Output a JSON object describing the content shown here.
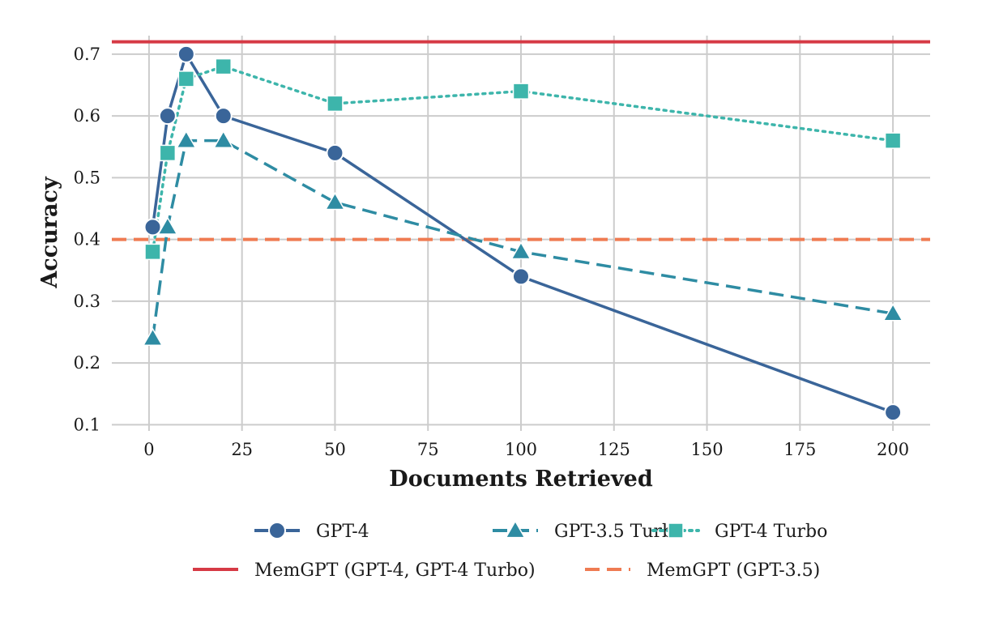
{
  "chart_data": {
    "type": "line",
    "xlabel": "Documents Retrieved",
    "ylabel": "Accuracy",
    "xlim": [
      -10,
      210
    ],
    "ylim": [
      0.09,
      0.73
    ],
    "xticks": [
      0,
      25,
      50,
      75,
      100,
      125,
      150,
      175,
      200
    ],
    "yticks": [
      0.1,
      0.2,
      0.3,
      0.4,
      0.5,
      0.6,
      0.7
    ],
    "grid": true,
    "legend_position": "bottom",
    "series": [
      {
        "name": "GPT-4",
        "color": "#3a6599",
        "line_style": "solid",
        "marker": "circle",
        "x": [
          1,
          5,
          10,
          20,
          50,
          100,
          200
        ],
        "y": [
          0.42,
          0.6,
          0.7,
          0.6,
          0.54,
          0.34,
          0.12
        ]
      },
      {
        "name": "GPT-3.5 Turbo",
        "color": "#2e8ca3",
        "line_style": "dashed",
        "marker": "triangle",
        "x": [
          1,
          5,
          10,
          20,
          50,
          100,
          200
        ],
        "y": [
          0.24,
          0.42,
          0.56,
          0.56,
          0.46,
          0.38,
          0.28
        ]
      },
      {
        "name": "GPT-4 Turbo",
        "color": "#3db5ab",
        "line_style": "dotted",
        "marker": "square",
        "x": [
          1,
          5,
          10,
          20,
          50,
          100,
          200
        ],
        "y": [
          0.38,
          0.54,
          0.66,
          0.68,
          0.62,
          0.64,
          0.56
        ]
      }
    ],
    "reference_lines": [
      {
        "name": "MemGPT (GPT-4, GPT-4 Turbo)",
        "y": 0.72,
        "color": "#d63a45",
        "line_style": "solid"
      },
      {
        "name": "MemGPT (GPT-3.5)",
        "y": 0.4,
        "color": "#ef7b52",
        "line_style": "dashed"
      }
    ]
  }
}
